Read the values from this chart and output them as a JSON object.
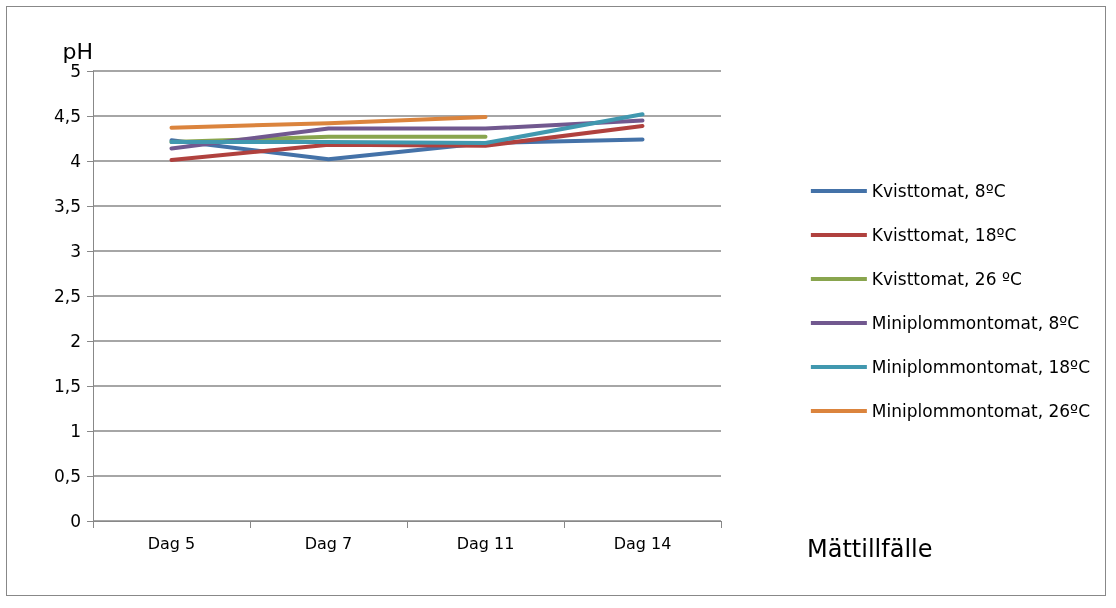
{
  "chart_data": {
    "type": "line",
    "xlabel": "Mättillfälle",
    "ylabel": "pH",
    "categories": [
      "Dag 5",
      "Dag 7",
      "Dag 11",
      "Dag 14"
    ],
    "series": [
      {
        "name": "Kvisttomat, 8ºC",
        "color": "#4472a8",
        "values": [
          4.23,
          4.02,
          4.2,
          4.24
        ]
      },
      {
        "name": "Kvisttomat, 18ºC",
        "color": "#b0413e",
        "values": [
          4.01,
          4.18,
          4.17,
          4.39
        ]
      },
      {
        "name": "Kvisttomat, 26 ºC",
        "color": "#89a54e",
        "values": [
          4.21,
          4.27,
          4.27,
          null
        ]
      },
      {
        "name": "Miniplommontomat, 8ºC",
        "color": "#71588f",
        "values": [
          4.14,
          4.36,
          4.36,
          4.45
        ]
      },
      {
        "name": "Miniplommontomat, 18ºC",
        "color": "#4198af",
        "values": [
          4.21,
          4.21,
          4.2,
          4.52
        ]
      },
      {
        "name": "Miniplommontomat, 26ºC",
        "color": "#db843d",
        "values": [
          4.37,
          4.42,
          4.49,
          null
        ]
      }
    ],
    "ylim": [
      0,
      5
    ],
    "yticks": [
      0,
      {
        "value": 0.5,
        "label": "0,5"
      },
      1,
      {
        "value": 1.5,
        "label": "1,5"
      },
      2,
      {
        "value": 2.5,
        "label": "2,5"
      },
      3,
      {
        "value": 3.5,
        "label": "3,5"
      },
      4,
      {
        "value": 4.5,
        "label": "4,5"
      },
      5
    ],
    "grid": "y",
    "legend": "right",
    "marker": "none"
  }
}
